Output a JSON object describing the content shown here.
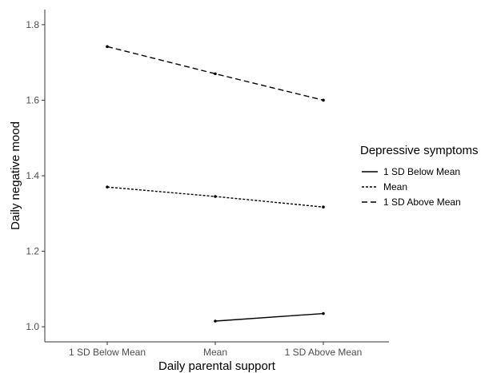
{
  "chart_data": {
    "type": "line",
    "xlabel": "Daily parental support",
    "ylabel": "Daily negative mood",
    "categories": [
      "1 SD Below Mean",
      "Mean",
      "1 SD Above Mean"
    ],
    "ylim": [
      0.96,
      1.84
    ],
    "yticks": [
      "1.0",
      "1.2",
      "1.4",
      "1.6",
      "1.8"
    ],
    "grid": false,
    "legend": {
      "title": "Depressive symptoms",
      "position": "right"
    },
    "series": [
      {
        "name": "1 SD Below Mean",
        "line_style": "solid",
        "values": [
          null,
          1.015,
          1.035
        ]
      },
      {
        "name": "Mean",
        "line_style": "dotted",
        "values": [
          1.37,
          1.345,
          1.317
        ]
      },
      {
        "name": "1 SD Above Mean",
        "line_style": "dashed",
        "values": [
          1.742,
          1.67,
          1.6
        ]
      }
    ],
    "colors": {
      "line": "#000000",
      "axis": "#333333",
      "tick_text": "#4d4d4d"
    }
  }
}
